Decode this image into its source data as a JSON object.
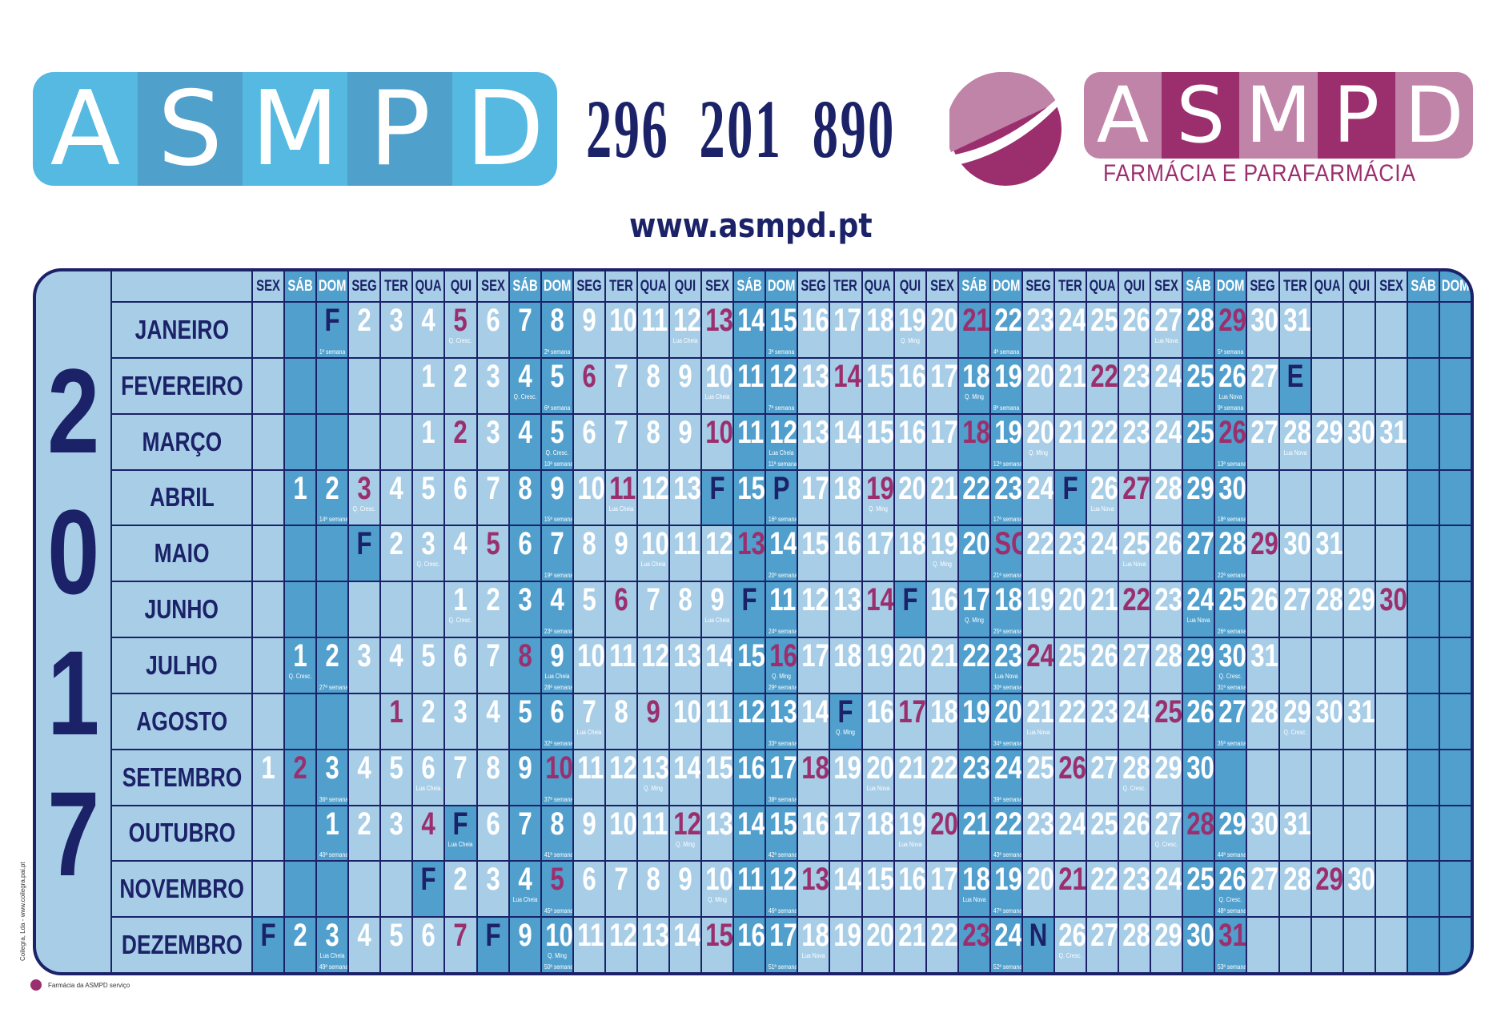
{
  "brand": {
    "left_logo_letters": [
      "A",
      "S",
      "M",
      "P",
      "D"
    ],
    "right_logo_letters": [
      "A",
      "S",
      "M",
      "P",
      "D"
    ],
    "phone": "296 201 890",
    "tagline": "FARMÁCIA E PARAFARMÁCIA",
    "website": "www.asmpd.pt",
    "colors": {
      "blue_light": "#55b9e1",
      "blue_dark": "#4fa0cb",
      "pink_light": "#c084a8",
      "magenta": "#9b2f6e",
      "navy": "#1b2268",
      "cell_light": "#a7cde7",
      "cell_dark": "#519fcd"
    }
  },
  "calendar": {
    "year": 2017,
    "year_digits": [
      "2",
      "0",
      "1",
      "7"
    ],
    "weekday_headers": [
      "SEX",
      "SÁB",
      "DOM",
      "SEG",
      "TER",
      "QUA",
      "QUI",
      "SEX",
      "SÁB",
      "DOM",
      "SEG",
      "TER",
      "QUA",
      "QUI",
      "SEX",
      "SÁB",
      "DOM",
      "SEG",
      "TER",
      "QUA",
      "QUI",
      "SEX",
      "SÁB",
      "DOM",
      "SEG",
      "TER",
      "QUA",
      "QUI",
      "SEX",
      "SÁB",
      "DOM",
      "SEG",
      "TER",
      "QUA",
      "QUI",
      "SEX",
      "SÁB",
      "DOM"
    ],
    "week_suffix": "ª semana",
    "months": [
      {
        "name": "JANEIRO",
        "duty": [
          5,
          13,
          21,
          29
        ],
        "holidays": {
          "1": "F"
        },
        "moon": {
          "5": "Q. Cresc.",
          "12": "Lua Cheia",
          "19": "Q. Ming",
          "27": "Lua Nova"
        }
      },
      {
        "name": "FEVEREIRO",
        "duty": [
          6,
          14,
          22
        ],
        "holidays": {
          "28": "E"
        },
        "moon": {
          "4": "Q. Cresc.",
          "10": "Lua Cheia",
          "18": "Q. Ming",
          "26": "Lua Nova"
        }
      },
      {
        "name": "MARÇO",
        "duty": [
          2,
          10,
          18,
          26
        ],
        "holidays": {},
        "moon": {
          "5": "Q. Cresc.",
          "12": "Lua Cheia",
          "20": "Q. Ming",
          "28": "Lua Nova"
        }
      },
      {
        "name": "ABRIL",
        "duty": [
          3,
          11,
          19,
          27
        ],
        "holidays": {
          "14": "F",
          "16": "P",
          "25": "F"
        },
        "moon": {
          "3": "Q. Cresc.",
          "11": "Lua Cheia",
          "19": "Q. Ming",
          "26": "Lua Nova"
        }
      },
      {
        "name": "MAIO",
        "duty": [
          5,
          13,
          21,
          29
        ],
        "holidays": {
          "1": "F",
          "21": "SC"
        },
        "moon": {
          "3": "Q. Cresc.",
          "10": "Lua Cheia",
          "19": "Q. Ming",
          "25": "Lua Nova"
        }
      },
      {
        "name": "JUNHO",
        "duty": [
          6,
          14,
          22,
          30
        ],
        "holidays": {
          "10": "F",
          "15": "F"
        },
        "moon": {
          "1": "Q. Cresc.",
          "9": "Lua Cheia",
          "17": "Q. Ming",
          "24": "Lua Nova"
        }
      },
      {
        "name": "JULHO",
        "duty": [
          8,
          16,
          24
        ],
        "holidays": {},
        "moon": {
          "1": "Q. Cresc.",
          "9": "Lua Cheia",
          "16": "Q. Ming",
          "23": "Lua Nova",
          "30": "Q. Cresc."
        }
      },
      {
        "name": "AGOSTO",
        "duty": [
          1,
          9,
          17,
          25
        ],
        "holidays": {
          "15": "F"
        },
        "moon": {
          "7": "Lua Cheia",
          "15": "Q. Ming",
          "21": "Lua Nova",
          "29": "Q. Cresc."
        }
      },
      {
        "name": "SETEMBRO",
        "duty": [
          2,
          10,
          18,
          26
        ],
        "holidays": {},
        "moon": {
          "6": "Lua Cheia",
          "13": "Q. Ming",
          "20": "Lua Nova",
          "28": "Q. Cresc."
        }
      },
      {
        "name": "OUTUBRO",
        "duty": [
          4,
          12,
          20,
          28
        ],
        "holidays": {
          "5": "F"
        },
        "moon": {
          "5": "Lua Cheia",
          "12": "Q. Ming",
          "19": "Lua Nova",
          "27": "Q. Cresc."
        }
      },
      {
        "name": "NOVEMBRO",
        "duty": [
          5,
          13,
          21,
          29
        ],
        "holidays": {
          "1": "F"
        },
        "moon": {
          "4": "Lua Cheia",
          "10": "Q. Ming",
          "18": "Lua Nova",
          "26": "Q. Cresc."
        }
      },
      {
        "name": "DEZEMBRO",
        "duty": [
          7,
          15,
          23,
          31
        ],
        "holidays": {
          "1": "F",
          "8": "F",
          "25": "N"
        },
        "moon": {
          "3": "Lua Cheia",
          "10": "Q. Ming",
          "18": "Lua Nova",
          "26": "Q. Cresc."
        }
      }
    ]
  },
  "footer": {
    "legend_label": "Farmácia da ASMPD serviço",
    "credit": "Coilegra, Lda - www.coilegra.pai.pt"
  }
}
